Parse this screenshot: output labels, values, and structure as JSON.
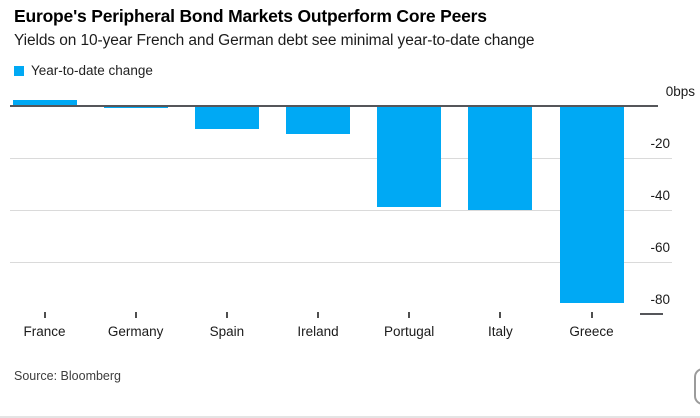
{
  "header": {
    "title": "Europe's Peripheral Bond Markets Outperform Core Peers",
    "subtitle": "Yields on 10-year French and German debt see minimal year-to-date change"
  },
  "legend": {
    "label": "Year-to-date change",
    "swatch_color": "#00a9f4"
  },
  "chart_data": {
    "type": "bar",
    "title": "Europe's Peripheral Bond Markets Outperform Core Peers",
    "subtitle": "Yields on 10-year French and German debt see minimal year-to-date change",
    "series_name": "Year-to-date change",
    "categories": [
      "France",
      "Germany",
      "Spain",
      "Ireland",
      "Portugal",
      "Italy",
      "Greece"
    ],
    "values": [
      2,
      -1,
      -9,
      -11,
      -39,
      -40,
      -76
    ],
    "unit": "bps",
    "xlabel": "",
    "ylabel": "",
    "ylim": [
      -85,
      5
    ],
    "y_ticks": [
      0,
      -20,
      -40,
      -60,
      -80
    ],
    "y_tick_labels": [
      "0bps",
      "-20",
      "-40",
      "-60",
      "-80"
    ],
    "grid": "horizontal",
    "legend_position": "top-left",
    "bar_color": "#00a9f4"
  },
  "footer": {
    "source": "Source: Bloomberg"
  },
  "colors": {
    "accent": "#00a9f4",
    "grid": "#dadada",
    "axis": "#55565a",
    "text": "#1a1a1a"
  }
}
